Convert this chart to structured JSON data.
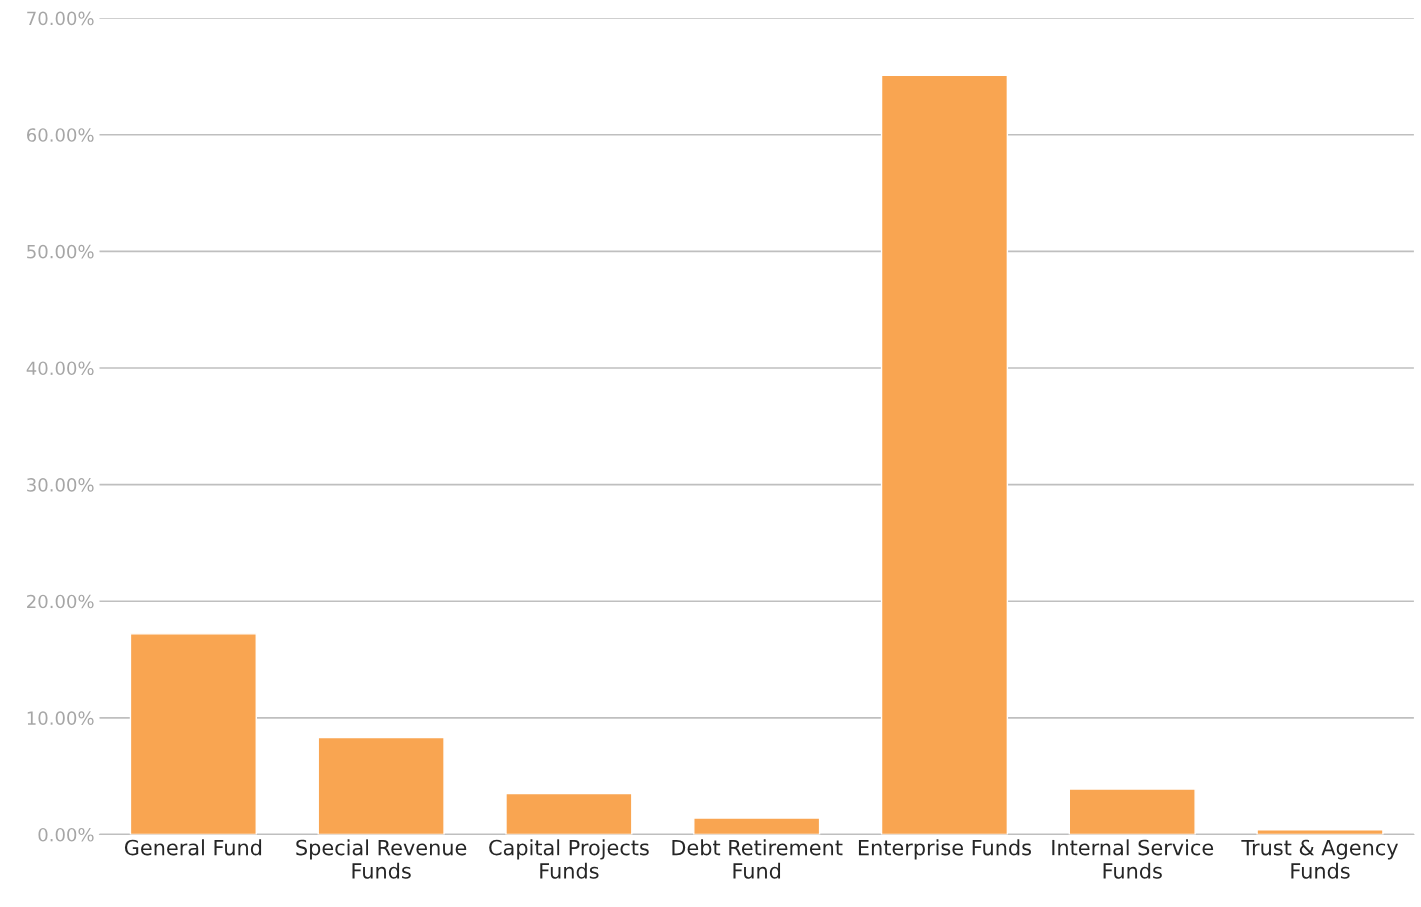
{
  "chart_data": {
    "type": "bar",
    "categories": [
      "General Fund",
      "Special Revenue\nFunds",
      "Capital Projects\nFunds",
      "Debt Retirement\nFund",
      "Enterprise Funds",
      "Internal Service\nFunds",
      "Trust & Agency\nFunds"
    ],
    "values": [
      17.2,
      8.3,
      3.5,
      1.4,
      65.1,
      3.9,
      0.4
    ],
    "color": "#f9a551",
    "ylim": [
      0,
      70
    ],
    "yticks": [
      {
        "value": 0,
        "label": "0.00%"
      },
      {
        "value": 10,
        "label": "10.00%"
      },
      {
        "value": 20,
        "label": "20.00%"
      },
      {
        "value": 30,
        "label": "30.00%"
      },
      {
        "value": 40,
        "label": "40.00%"
      },
      {
        "value": 50,
        "label": "50.00%"
      },
      {
        "value": 60,
        "label": "60.00%"
      },
      {
        "value": 70,
        "label": "70.00%"
      }
    ],
    "grid": "y"
  }
}
